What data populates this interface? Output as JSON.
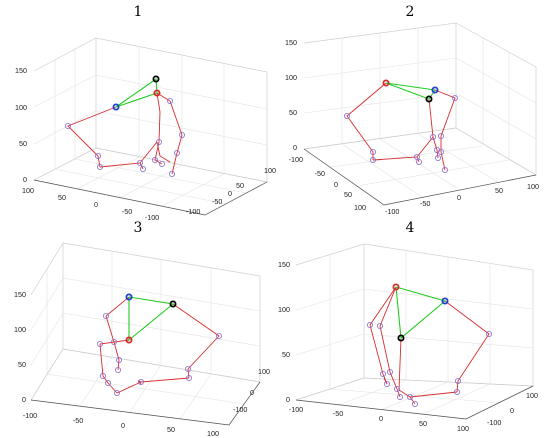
{
  "panels": [
    {
      "title": "1",
      "z_ticks": [
        "150",
        "100",
        "50",
        "0"
      ],
      "x_ticks": [
        "100",
        "50",
        "0",
        "-50",
        "-100"
      ],
      "y_ticks": [
        "100",
        "50",
        "0",
        "-50",
        "-100"
      ]
    },
    {
      "title": "2",
      "z_ticks": [
        "150",
        "100",
        "50",
        "0"
      ],
      "x_ticks": [
        "-100",
        "-50",
        "0",
        "50",
        "100"
      ],
      "y_ticks": [
        "100",
        "50",
        "0",
        "-50",
        "-100"
      ]
    },
    {
      "title": "3",
      "z_ticks": [
        "150",
        "100",
        "50",
        "0"
      ],
      "x_ticks": [
        "-100",
        "-50",
        "0",
        "50",
        "100"
      ],
      "y_ticks": [
        "100",
        "0",
        "-100"
      ]
    },
    {
      "title": "4",
      "z_ticks": [
        "150",
        "100",
        "50",
        "0"
      ],
      "x_ticks": [
        "-100",
        "-50",
        "0",
        "50",
        "100"
      ],
      "y_ticks": [
        "100",
        "0",
        "-100"
      ]
    }
  ],
  "colors": {
    "limb_line": "#d62d2d",
    "triangle_line": "#22cc22",
    "joint_marker": "#8a6acc",
    "marker_red": "#d62d2d",
    "marker_blue": "#1f3fcc",
    "marker_black": "#000000"
  }
}
